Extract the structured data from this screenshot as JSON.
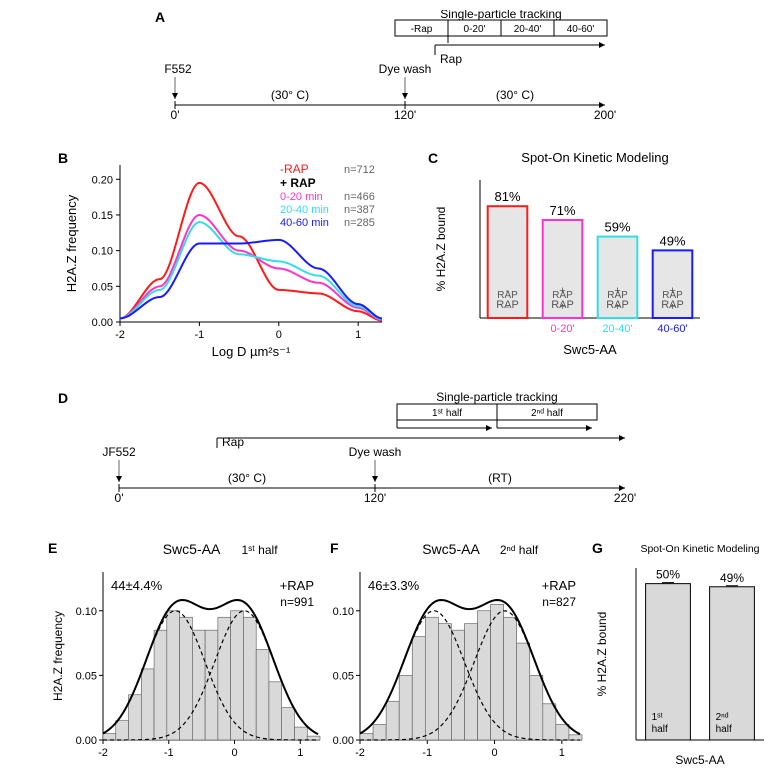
{
  "panel_A": {
    "label": "A",
    "timeline": {
      "start": "0'",
      "dyewash": "120'",
      "end": "200'",
      "jf552": "JF552",
      "dyewash_label": "Dye wash",
      "temp1": "(30° C)",
      "temp2": "(30° C)",
      "rap_label": "Rap",
      "tracking_header": "Single-particle tracking",
      "boxes": [
        "-Rap",
        "0-20'",
        "20-40'",
        "40-60'"
      ]
    },
    "colors": {
      "line": "#000000"
    }
  },
  "panel_B": {
    "label": "B",
    "xlabel": "Log D µm²s⁻¹",
    "ylabel": "H2A.Z frequency",
    "xlim": [
      -2,
      1.3
    ],
    "ylim": [
      0,
      0.22
    ],
    "yticks": [
      0.0,
      0.05,
      0.1,
      0.15,
      0.2
    ],
    "xticks": [
      -2,
      -1,
      0,
      1
    ],
    "series": [
      {
        "name": "-RAP",
        "color": "#ff1a1a",
        "n": "n=712",
        "x": [
          -2,
          -1.5,
          -1,
          -0.5,
          0,
          0.5,
          1,
          1.3
        ],
        "y": [
          0.005,
          0.06,
          0.195,
          0.12,
          0.045,
          0.04,
          0.015,
          0.002
        ]
      },
      {
        "name": "0-20 min",
        "color": "#ff33cc",
        "n": "n=466",
        "x": [
          -2,
          -1.5,
          -1,
          -0.5,
          0,
          0.5,
          1,
          1.3
        ],
        "y": [
          0.005,
          0.05,
          0.15,
          0.1,
          0.075,
          0.055,
          0.02,
          0.003
        ]
      },
      {
        "name": "20-40 min",
        "color": "#33dde6",
        "n": "n=387",
        "x": [
          -2,
          -1.5,
          -1,
          -0.5,
          0,
          0.5,
          1,
          1.3
        ],
        "y": [
          0.005,
          0.045,
          0.14,
          0.095,
          0.085,
          0.065,
          0.022,
          0.004
        ]
      },
      {
        "name": "40-60 min",
        "color": "#1a1aff",
        "n": "n=285",
        "x": [
          -2,
          -1.5,
          -1,
          -0.5,
          0,
          0.5,
          1,
          1.3
        ],
        "y": [
          0.005,
          0.035,
          0.11,
          0.11,
          0.115,
          0.075,
          0.025,
          0.005
        ]
      }
    ],
    "legend_header": "+ RAP",
    "legend_minus": "-RAP"
  },
  "panel_C": {
    "label": "C",
    "title": "Spot-On Kinetic Modeling",
    "ylabel": "% H2A.Z bound",
    "ylim": [
      0,
      100
    ],
    "bars": [
      {
        "label": "- RAP",
        "value": 81,
        "pct": "81%",
        "border": "#ff1a1a",
        "sublabel": ""
      },
      {
        "label": "+ RAP",
        "value": 71,
        "pct": "71%",
        "border": "#ff33cc",
        "sublabel": "0-20'"
      },
      {
        "label": "+ RAP",
        "value": 59,
        "pct": "59%",
        "border": "#33dde6",
        "sublabel": "20-40'"
      },
      {
        "label": "+ RAP",
        "value": 49,
        "pct": "49%",
        "border": "#1a1aff",
        "sublabel": "40-60'"
      }
    ],
    "xlabel": "Swc5-AA"
  },
  "panel_D": {
    "label": "D",
    "timeline": {
      "start": "0'",
      "mid": "120'",
      "end": "220'",
      "jf552": "JF552",
      "dyewash_label": "Dye wash",
      "temp1": "(30° C)",
      "temp2": "(RT)",
      "rap_label": "Rap",
      "tracking_header": "Single-particle tracking",
      "headers": [
        "1ˢᵗ half",
        "2ⁿᵈ half"
      ]
    }
  },
  "panel_E": {
    "label": "E",
    "title": "Swc5-AA",
    "subtitle": "1ˢᵗ half",
    "percent": "44±4.4%",
    "rap_label": "+RAP",
    "n_label": "n=991",
    "ylabel": "H2A.Z frequency",
    "xlim": [
      -2,
      1.3
    ],
    "ylim": [
      0,
      0.13
    ],
    "yticks": [
      0.0,
      0.05,
      0.1
    ],
    "xticks": [
      -2,
      -1,
      0,
      1
    ],
    "hist_color": "#d9d9d9",
    "curve_color": "#000000",
    "hist_vals": [
      0.005,
      0.015,
      0.035,
      0.055,
      0.085,
      0.1,
      0.095,
      0.085,
      0.085,
      0.095,
      0.1,
      0.095,
      0.07,
      0.045,
      0.025,
      0.01,
      0.003
    ]
  },
  "panel_F": {
    "label": "F",
    "title": "Swc5-AA",
    "subtitle": "2ⁿᵈ half",
    "percent": "46±3.3%",
    "rap_label": "+RAP",
    "n_label": "n=827",
    "xlim": [
      -2,
      1.3
    ],
    "ylim": [
      0,
      0.13
    ],
    "yticks": [
      0.0,
      0.05,
      0.1
    ],
    "xticks": [
      -2,
      -1,
      0,
      1
    ],
    "hist_color": "#d9d9d9",
    "curve_color": "#000000",
    "hist_vals": [
      0.005,
      0.012,
      0.03,
      0.05,
      0.08,
      0.095,
      0.09,
      0.085,
      0.09,
      0.1,
      0.105,
      0.095,
      0.075,
      0.05,
      0.028,
      0.012,
      0.004
    ]
  },
  "panel_G": {
    "label": "G",
    "title": "Spot-On Kinetic Modeling",
    "ylabel": "% H2A.Z bound",
    "ylim": [
      0,
      55
    ],
    "bars": [
      {
        "label": "1ˢᵗ half",
        "value": 50,
        "pct": "50%",
        "fill": "#d9d9d9",
        "border": "#000"
      },
      {
        "label": "2ⁿᵈ half",
        "value": 49,
        "pct": "49%",
        "fill": "#d9d9d9",
        "border": "#000"
      }
    ],
    "xlabel": "Swc5-AA"
  }
}
